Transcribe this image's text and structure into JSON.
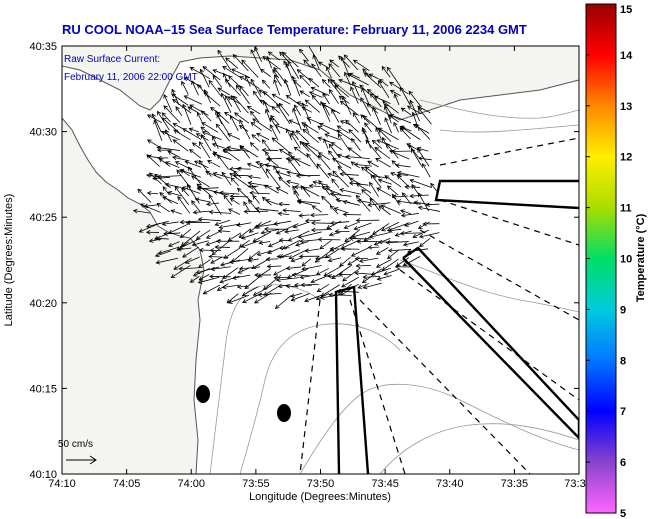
{
  "title": "RU COOL  NOAA–15  Sea Surface Temperature:  February 11, 2006 2234 GMT",
  "legend": {
    "line1": "Raw Surface Current:",
    "line2": "February 11, 2006 22:00 GMT"
  },
  "axes": {
    "xlabel": "Longitude (Degrees:Minutes)",
    "ylabel": "Latitude (Degrees:Minutes)",
    "x_ticks": [
      "74:10",
      "74:05",
      "74:00",
      "73:55",
      "73:50",
      "73:45",
      "73:40",
      "73:35",
      "73:3"
    ],
    "y_ticks": [
      "40:35",
      "40:30",
      "40:25",
      "40:20",
      "40:15",
      "40:10"
    ]
  },
  "colorbar": {
    "label": "Temperature (°C)",
    "ticks": [
      "15",
      "14",
      "13",
      "12",
      "11",
      "10",
      "9",
      "8",
      "7",
      "6",
      "5"
    ]
  },
  "scale": {
    "label": "50 cm/s"
  },
  "colors": {
    "title": "#0000cc",
    "land": "#f2f2ee",
    "ocean": "#ffffff"
  },
  "icons": [
    "vector-arrow-icon",
    "scale-arrow-icon"
  ]
}
